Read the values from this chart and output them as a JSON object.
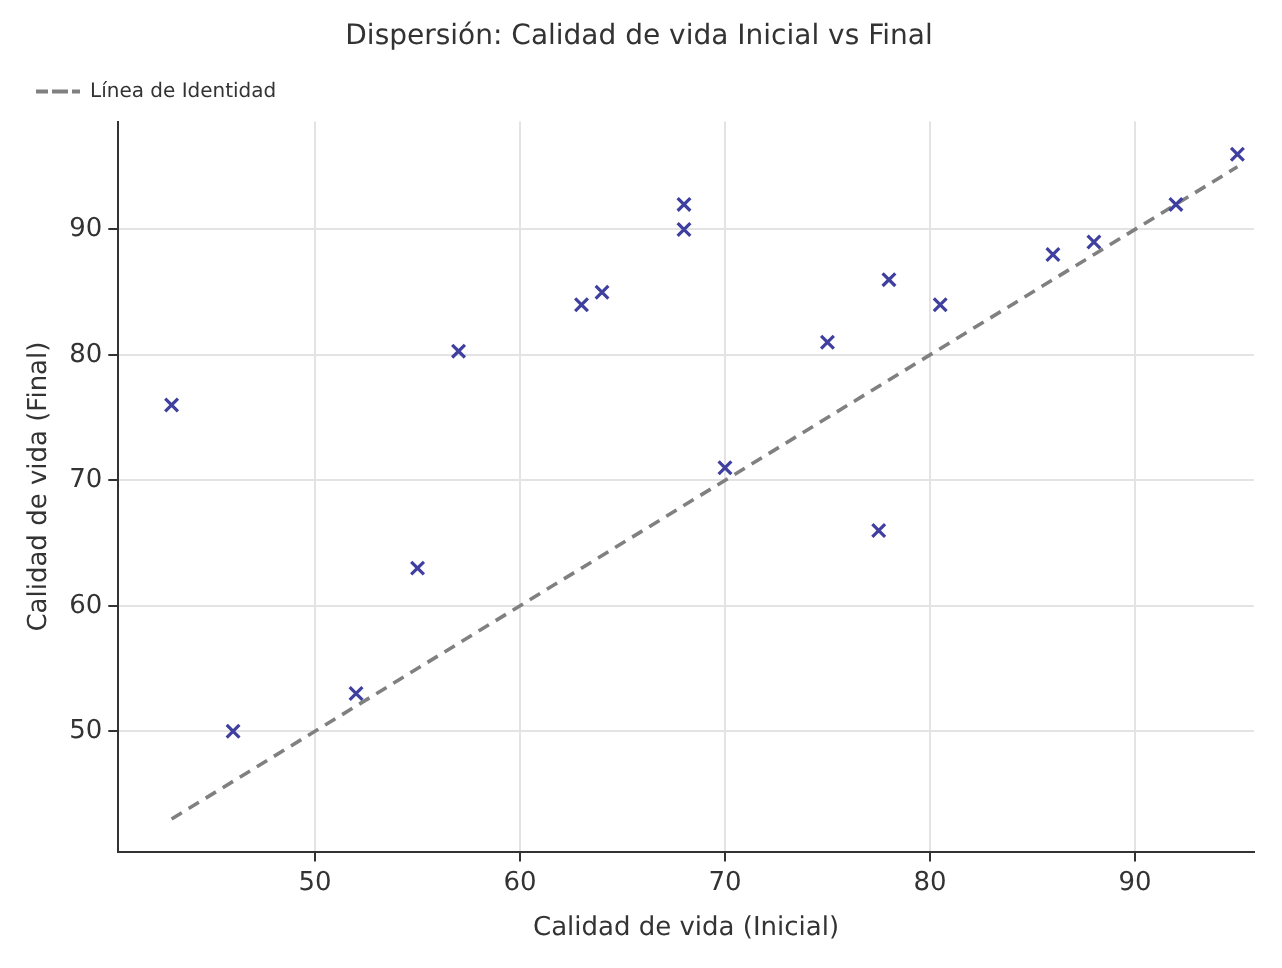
{
  "chart_data": {
    "type": "scatter",
    "title": "Dispersión: Calidad de vida Inicial vs Final",
    "xlabel": "Calidad de vida (Inicial)",
    "ylabel": "Calidad de vida (Final)",
    "series": [
      {
        "type": "scatter",
        "color": "#3f3f9f",
        "marker": "cross",
        "x": [
          43,
          46,
          52,
          55,
          57,
          63,
          64,
          68,
          68,
          70,
          75,
          78,
          77.5,
          80.5,
          86,
          88,
          92,
          95
        ],
        "values": [
          76,
          50,
          53,
          63,
          80.3,
          84,
          85,
          92,
          90,
          71,
          81,
          86,
          66,
          84,
          88,
          89,
          92,
          96
        ]
      },
      {
        "type": "line",
        "name": "Línea de Identidad",
        "color": "#808080",
        "line_style": "dashed",
        "marker": "none",
        "x": [
          43,
          95
        ],
        "values": [
          43,
          95
        ]
      }
    ],
    "xlim": [
      40.4,
      95.8
    ],
    "ylim": [
      40.4,
      98.6
    ],
    "xticks": [
      50,
      60,
      70,
      80,
      90
    ],
    "yticks": [
      50,
      60,
      70,
      80,
      90
    ],
    "grid": true,
    "legend": "top left"
  }
}
